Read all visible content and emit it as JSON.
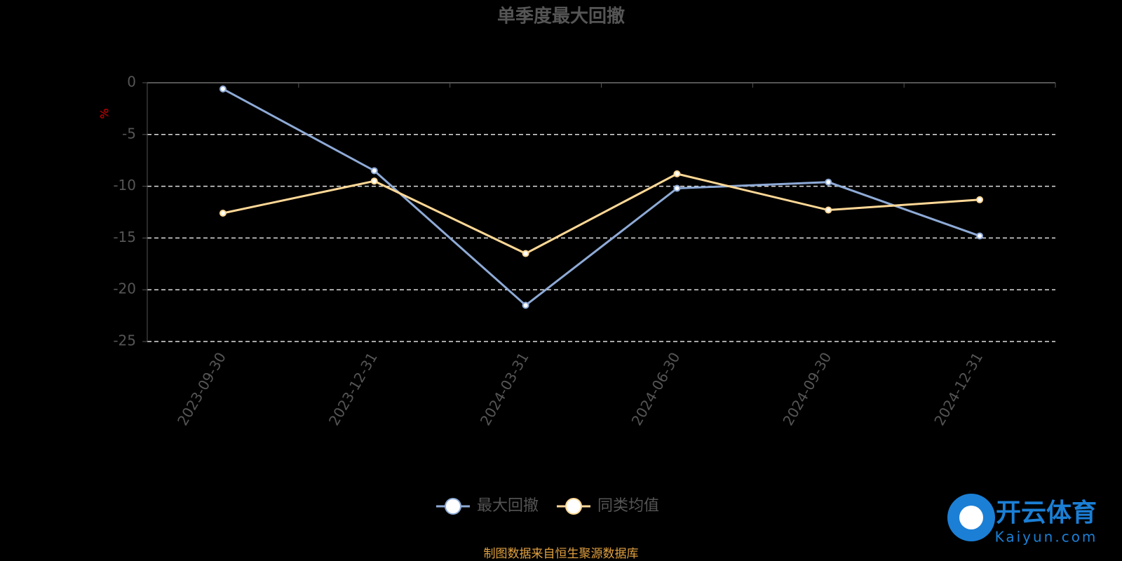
{
  "chart_data": {
    "type": "line",
    "title": "单季度最大回撤",
    "y_label": "%",
    "categories": [
      "2023-09-30",
      "2023-12-31",
      "2024-03-31",
      "2024-06-30",
      "2024-09-30",
      "2024-12-31"
    ],
    "series": [
      {
        "name": "最大回撤",
        "color": "#8eaad6",
        "values": [
          -0.6,
          -8.5,
          -21.5,
          -10.2,
          -9.6,
          -14.8
        ]
      },
      {
        "name": "同类均值",
        "color": "#ffd896",
        "values": [
          -12.6,
          -9.5,
          -16.5,
          -8.8,
          -12.3,
          -11.3
        ]
      }
    ],
    "ylim": [
      -25,
      0
    ],
    "yticks": [
      0,
      -5,
      -10,
      -15,
      -20,
      -25
    ],
    "grid": true,
    "legend": "bottom",
    "source": "制图数据来自恒生聚源数据库"
  },
  "watermark": {
    "title": "开云体育",
    "subtitle": "Kaiyun.com"
  }
}
